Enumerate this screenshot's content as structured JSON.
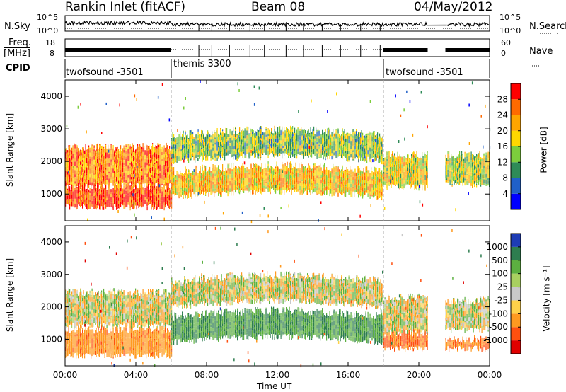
{
  "header": {
    "station": "Rankin Inlet (fitACF)",
    "beam": "Beam 08",
    "date": "04/May/2012"
  },
  "top_panels": {
    "nsky_label": "N.Sky",
    "nsearch_label": "N.Search",
    "freq_label": "Freq.",
    "freq_unit": "[MHz]",
    "nave_label": "Nave",
    "cpid_label": "CPID",
    "noise_ticks": [
      "10^5",
      "10^0"
    ],
    "noise_ticks_right": [
      "10^5",
      "10^0"
    ],
    "freq_ticks": [
      "18",
      "8"
    ],
    "nave_ticks": [
      "60",
      "0"
    ]
  },
  "cpid_segments": [
    {
      "name": "twofsound -3501",
      "start": 0.0,
      "end": 6.0
    },
    {
      "name": "themis 3300",
      "start": 6.0,
      "end": 18.0
    },
    {
      "name": "twofsound -3501",
      "start": 18.0,
      "end": 24.0
    }
  ],
  "data_gap": {
    "start": 20.5,
    "end": 21.5
  },
  "x_axis": {
    "label": "Time UT",
    "ticks": [
      "00:00",
      "04:00",
      "08:00",
      "12:00",
      "16:00",
      "20:00",
      "00:00"
    ],
    "range_hours": [
      0,
      24
    ]
  },
  "y_axis": {
    "label": "Slant Range [km]",
    "ticks": [
      "1000",
      "2000",
      "3000",
      "4000"
    ],
    "range_km": [
      180,
      4500
    ]
  },
  "power_colorbar": {
    "label": "Power [dB]",
    "ticks": [
      "4",
      "8",
      "12",
      "16",
      "20",
      "24",
      "28"
    ],
    "colors": [
      "#0000ff",
      "#2060c8",
      "#2e8b57",
      "#7ccd3c",
      "#ffd700",
      "#ffa500",
      "#ff6a00",
      "#ff0000"
    ]
  },
  "velocity_colorbar": {
    "label": "Velocity [m s⁻¹]",
    "ticks": [
      "1000",
      "500",
      "100",
      "25",
      "-25",
      "-100",
      "-500",
      "-1000"
    ],
    "colors": [
      "#1e3cb4",
      "#2e7d4f",
      "#5cb040",
      "#a8d060",
      "#c8c8c8",
      "#ffd24a",
      "#ff9a20",
      "#ff5010",
      "#e00000"
    ]
  },
  "chart_data": [
    {
      "type": "heatmap",
      "title": "Power",
      "xlabel": "Time UT",
      "ylabel": "Slant Range [km]",
      "x_range_hours": [
        0,
        24
      ],
      "ylim": [
        180,
        4500
      ],
      "colorbar_label": "Power [dB]",
      "colorbar_range": [
        0,
        30
      ],
      "bands": [
        {
          "t_start": 0.0,
          "t_end": 6.0,
          "r_low": 1250,
          "r_high": 2450,
          "value_db": 24
        },
        {
          "t_start": 0.0,
          "t_end": 6.0,
          "r_low": 600,
          "r_high": 1250,
          "value_db": 28
        },
        {
          "t_start": 6.0,
          "t_end": 18.0,
          "r_low": 2000,
          "r_high": 2800,
          "value_db": 14
        },
        {
          "t_start": 6.0,
          "t_end": 18.0,
          "r_low": 900,
          "r_high": 1700,
          "value_db": 20
        },
        {
          "t_start": 18.0,
          "t_end": 20.5,
          "r_low": 1200,
          "r_high": 2200,
          "value_db": 18
        },
        {
          "t_start": 21.5,
          "t_end": 24.0,
          "r_low": 1300,
          "r_high": 2200,
          "value_db": 16
        }
      ]
    },
    {
      "type": "heatmap",
      "title": "Velocity",
      "xlabel": "Time UT",
      "ylabel": "Slant Range [km]",
      "x_range_hours": [
        0,
        24
      ],
      "ylim": [
        180,
        4500
      ],
      "colorbar_label": "Velocity [m s⁻¹]",
      "colorbar_range": [
        -1000,
        1000
      ],
      "bands": [
        {
          "t_start": 0.0,
          "t_end": 6.0,
          "r_low": 1400,
          "r_high": 2450,
          "value_ms": 0
        },
        {
          "t_start": 0.0,
          "t_end": 6.0,
          "r_low": 500,
          "r_high": 1300,
          "value_ms": -200
        },
        {
          "t_start": 6.0,
          "t_end": 18.0,
          "r_low": 2000,
          "r_high": 2800,
          "value_ms": 0
        },
        {
          "t_start": 6.0,
          "t_end": 18.0,
          "r_low": 900,
          "r_high": 1700,
          "value_ms": 300
        },
        {
          "t_start": 18.0,
          "t_end": 20.5,
          "r_low": 1200,
          "r_high": 2300,
          "value_ms": 0
        },
        {
          "t_start": 18.0,
          "t_end": 20.5,
          "r_low": 700,
          "r_high": 1200,
          "value_ms": -300
        },
        {
          "t_start": 21.5,
          "t_end": 24.0,
          "r_low": 1300,
          "r_high": 2200,
          "value_ms": 0
        },
        {
          "t_start": 21.5,
          "t_end": 24.0,
          "r_low": 700,
          "r_high": 1000,
          "value_ms": -300
        }
      ]
    }
  ]
}
